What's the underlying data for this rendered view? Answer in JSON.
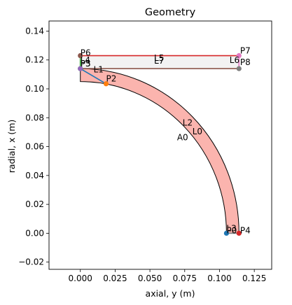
{
  "chart_data": {
    "type": "scatter",
    "title": "Geometry",
    "xlabel": "axial, y (m)",
    "ylabel": "radial, x (m)",
    "xlim": [
      -0.0225,
      0.1375
    ],
    "ylim": [
      -0.025,
      0.147
    ],
    "xticks": [
      "0.000",
      "0.025",
      "0.050",
      "0.075",
      "0.100",
      "0.125"
    ],
    "xtick_values": [
      0.0,
      0.025,
      0.05,
      0.075,
      0.1,
      0.125
    ],
    "yticks": [
      "−0.02",
      "0.00",
      "0.02",
      "0.04",
      "0.06",
      "0.08",
      "0.10",
      "0.12",
      "0.14"
    ],
    "ytick_values": [
      -0.02,
      0.0,
      0.02,
      0.04,
      0.06,
      0.08,
      0.1,
      0.12,
      0.14
    ],
    "grid": false,
    "regions": {
      "annulus": {
        "name": "A0",
        "center": [
          0.0,
          0.0
        ],
        "inner_radius": 0.105,
        "outer_radius": 0.114,
        "fill": "#fbb4ae",
        "stroke": "#000000"
      },
      "rectangle": {
        "x0": 0.0,
        "x1": 0.114,
        "y0": 0.114,
        "y1": 0.123,
        "fill": "#f2f2f2"
      }
    },
    "lines": [
      {
        "name": "L1",
        "points": [
          [
            0.0,
            0.114
          ],
          [
            0.0185,
            0.1035
          ]
        ],
        "color": "#1f77b4"
      },
      {
        "name": "L4",
        "points": [
          [
            0.0,
            0.123
          ],
          [
            0.0,
            0.114
          ]
        ],
        "color": "#2ca02c"
      },
      {
        "name": "L5",
        "points": [
          [
            0.0,
            0.123
          ],
          [
            0.114,
            0.123
          ]
        ],
        "color": "#d62728"
      },
      {
        "name": "L6",
        "points": [
          [
            0.114,
            0.123
          ],
          [
            0.114,
            0.114
          ]
        ],
        "color": "#e377c2"
      },
      {
        "name": "L7",
        "points": [
          [
            0.0,
            0.114
          ],
          [
            0.114,
            0.114
          ]
        ],
        "color": "#8c564b"
      },
      {
        "name": "L3",
        "points": [
          [
            0.105,
            0.0
          ],
          [
            0.114,
            0.0
          ]
        ],
        "color": "#7f7f7f"
      }
    ],
    "points": [
      {
        "name": "P0",
        "x": 0.105,
        "y": 0.0,
        "color": "#1f77b4"
      },
      {
        "name": "P2",
        "x": 0.0185,
        "y": 0.1035,
        "color": "#ff7f0e"
      },
      {
        "name": "P3",
        "x": 0.0,
        "y": 0.114,
        "color": "#2ca02c"
      },
      {
        "name": "P4",
        "x": 0.114,
        "y": 0.0,
        "color": "#d62728"
      },
      {
        "name": "P5",
        "x": 0.0,
        "y": 0.114,
        "color": "#9467bd"
      },
      {
        "name": "P6",
        "x": 0.0,
        "y": 0.123,
        "color": "#8c564b"
      },
      {
        "name": "P7",
        "x": 0.114,
        "y": 0.123,
        "color": "#e377c2"
      },
      {
        "name": "P8",
        "x": 0.114,
        "y": 0.114,
        "color": "#7f7f7f"
      }
    ],
    "annotations": [
      {
        "text": "P6",
        "x": 0.0,
        "y": 0.123
      },
      {
        "text": "P7",
        "x": 0.1148,
        "y": 0.1245
      },
      {
        "text": "L4",
        "x": 0.0,
        "y": 0.118
      },
      {
        "text": "L5",
        "x": 0.053,
        "y": 0.1195
      },
      {
        "text": "L7",
        "x": 0.053,
        "y": 0.1175
      },
      {
        "text": "L6",
        "x": 0.1072,
        "y": 0.118
      },
      {
        "text": "P8",
        "x": 0.1148,
        "y": 0.1165
      },
      {
        "text": "P3",
        "x": 0.0,
        "y": 0.1155
      },
      {
        "text": "P5",
        "x": 0.0,
        "y": 0.1155
      },
      {
        "text": "L1",
        "x": 0.0095,
        "y": 0.1115
      },
      {
        "text": "P2",
        "x": 0.0185,
        "y": 0.105
      },
      {
        "text": "L2",
        "x": 0.0735,
        "y": 0.0745
      },
      {
        "text": "L0",
        "x": 0.0805,
        "y": 0.0685
      },
      {
        "text": "A0",
        "x": 0.0695,
        "y": 0.0645
      },
      {
        "text": "L3",
        "x": 0.105,
        "y": 0.0015
      },
      {
        "text": "P0",
        "x": 0.105,
        "y": 0.0
      },
      {
        "text": "P4",
        "x": 0.1148,
        "y": 0.0
      }
    ]
  }
}
